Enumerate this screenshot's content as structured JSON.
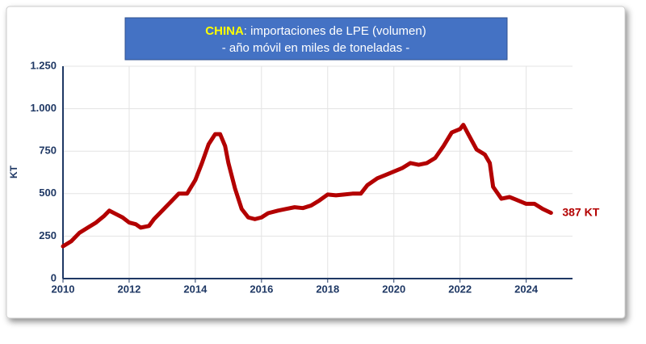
{
  "chart_data": {
    "type": "line",
    "title_highlight": "CHINA",
    "title": ": importaciones de LPE (volumen)",
    "subtitle": "- año móvil en miles de toneladas -",
    "y_label": "KT",
    "end_label": "387 KT",
    "x": [
      2010,
      2010.25,
      2010.5,
      2010.75,
      2011,
      2011.25,
      2011.4,
      2011.6,
      2011.8,
      2012,
      2012.2,
      2012.35,
      2012.6,
      2012.75,
      2013,
      2013.25,
      2013.5,
      2013.75,
      2014,
      2014.2,
      2014.4,
      2014.6,
      2014.75,
      2014.9,
      2015,
      2015.2,
      2015.4,
      2015.6,
      2015.8,
      2016,
      2016.2,
      2016.5,
      2016.75,
      2017,
      2017.25,
      2017.5,
      2017.75,
      2018,
      2018.25,
      2018.5,
      2018.75,
      2019,
      2019.2,
      2019.5,
      2019.75,
      2020,
      2020.25,
      2020.5,
      2020.75,
      2021,
      2021.25,
      2021.5,
      2021.75,
      2022,
      2022.1,
      2022.25,
      2022.5,
      2022.75,
      2022.9,
      2023,
      2023.25,
      2023.5,
      2023.75,
      2024,
      2024.25,
      2024.5,
      2024.75
    ],
    "series": [
      {
        "name": "China",
        "color": "#b30000",
        "values": [
          190,
          220,
          270,
          300,
          330,
          370,
          400,
          380,
          360,
          330,
          320,
          300,
          310,
          350,
          400,
          450,
          500,
          500,
          580,
          680,
          790,
          850,
          850,
          780,
          680,
          530,
          410,
          360,
          350,
          360,
          385,
          400,
          410,
          420,
          415,
          430,
          460,
          495,
          490,
          495,
          500,
          500,
          550,
          590,
          610,
          630,
          650,
          680,
          670,
          680,
          710,
          780,
          860,
          880,
          905,
          850,
          760,
          730,
          680,
          540,
          470,
          480,
          460,
          440,
          440,
          410,
          387
        ]
      }
    ],
    "xlim": [
      2010,
      2025.4
    ],
    "xticks": [
      2010,
      2012,
      2014,
      2016,
      2018,
      2020,
      2022,
      2024
    ],
    "ylim": [
      0,
      1250
    ],
    "yticks": [
      0,
      250,
      500,
      750,
      {
        "value": 1000,
        "label": "1.000"
      },
      {
        "value": 1250,
        "label": "1.250"
      }
    ],
    "grid": true
  }
}
